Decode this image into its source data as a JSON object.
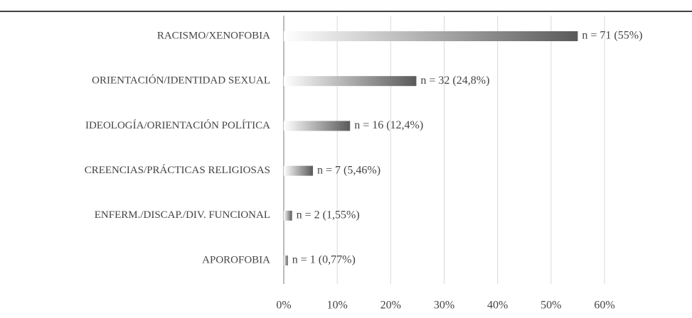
{
  "chart_data": {
    "type": "bar",
    "orientation": "horizontal",
    "categories": [
      "RACISMO/XENOFOBIA",
      "ORIENTACIÓN/IDENTIDAD SEXUAL",
      "IDEOLOGÍA/ORIENTACIÓN POLÍTICA",
      "CREENCIAS/PRÁCTICAS RELIGIOSAS",
      "ENFERM./DISCAP./DIV. FUNCIONAL",
      "APOROFOBIA"
    ],
    "values": [
      55,
      24.8,
      12.4,
      5.46,
      1.55,
      0.77
    ],
    "value_labels": [
      "n = 71 (55%)",
      "n = 32 (24,8%)",
      "n = 16 (12,4%)",
      "n = 7 (5,46%)",
      "n = 2 (1,55%)",
      "n = 1 (0,77%)"
    ],
    "color": "#5a5a5a",
    "xlim": [
      0,
      60
    ],
    "xticks": [
      {
        "value": 0,
        "label": "0%"
      },
      {
        "value": 10,
        "label": "10%"
      },
      {
        "value": 20,
        "label": "20%"
      },
      {
        "value": 30,
        "label": "30%"
      },
      {
        "value": 40,
        "label": "40%"
      },
      {
        "value": 50,
        "label": "50%"
      },
      {
        "value": 60,
        "label": "60%"
      }
    ],
    "grid": true
  }
}
